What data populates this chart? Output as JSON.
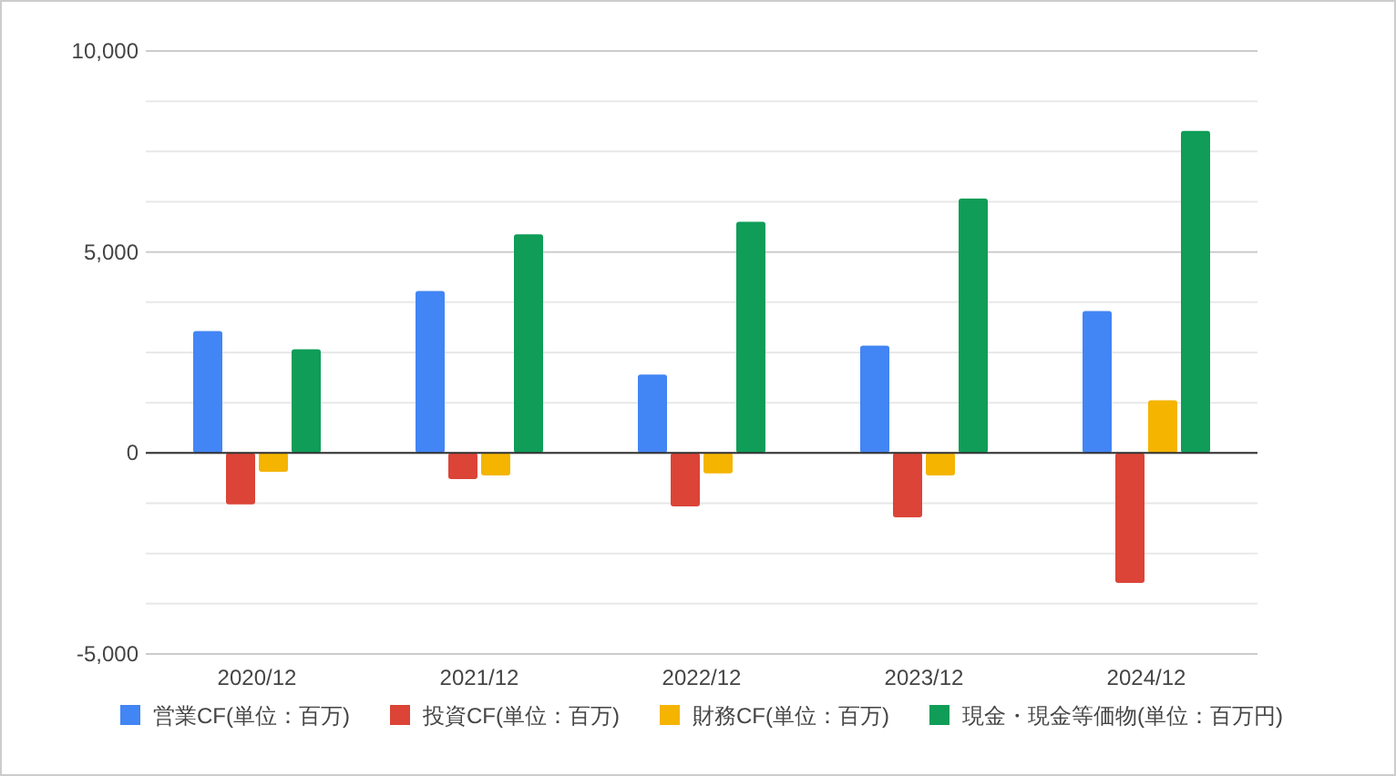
{
  "chart_data": {
    "type": "bar",
    "categories": [
      "2020/12",
      "2021/12",
      "2022/12",
      "2023/12",
      "2024/12"
    ],
    "series": [
      {
        "name": "営業CF(単位：百万)",
        "color": "#4285f4",
        "values": [
          3030,
          4030,
          1950,
          2670,
          3530
        ]
      },
      {
        "name": "投資CF(単位：百万)",
        "color": "#db4437",
        "values": [
          -1280,
          -650,
          -1330,
          -1600,
          -3230
        ]
      },
      {
        "name": "財務CF(単位：百万)",
        "color": "#f4b400",
        "values": [
          -470,
          -560,
          -510,
          -560,
          1310
        ]
      },
      {
        "name": "現金・現金等価物(単位：百万円)",
        "color": "#0f9d58",
        "values": [
          2580,
          5440,
          5750,
          6330,
          8010
        ]
      }
    ],
    "ylim": [
      -5000,
      10000
    ],
    "yticks": [
      {
        "value": -5000,
        "label": "-5,000"
      },
      {
        "value": -3750,
        "label": null
      },
      {
        "value": -2500,
        "label": null
      },
      {
        "value": -1250,
        "label": null
      },
      0,
      {
        "value": 1250,
        "label": null
      },
      {
        "value": 2500,
        "label": null
      },
      {
        "value": 3750,
        "label": null
      },
      {
        "value": 5000,
        "label": "5,000"
      },
      {
        "value": 6250,
        "label": null
      },
      {
        "value": 7500,
        "label": null
      },
      {
        "value": 8750,
        "label": null
      },
      {
        "value": 10000,
        "label": "10,000"
      }
    ],
    "grid": "y",
    "legend": "bottom"
  }
}
